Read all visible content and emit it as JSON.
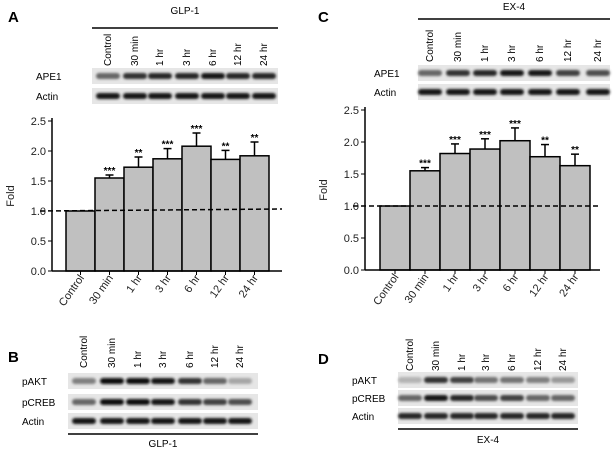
{
  "panels": {
    "A": {
      "label": "A",
      "treatment": "GLP-1",
      "blot_rows": [
        "APE1",
        "Actin"
      ]
    },
    "B": {
      "label": "B",
      "treatment": "GLP-1",
      "blot_rows": [
        "pAKT",
        "pCREB",
        "Actin"
      ]
    },
    "C": {
      "label": "C",
      "treatment": "EX-4",
      "blot_rows": [
        "APE1",
        "Actin"
      ]
    },
    "D": {
      "label": "D",
      "treatment": "EX-4",
      "blot_rows": [
        "pAKT",
        "pCREB",
        "Actin"
      ]
    }
  },
  "lanes": [
    "Control",
    "30 min",
    "1 hr",
    "3 hr",
    "6 hr",
    "12 hr",
    "24 hr"
  ],
  "band_intensity": {
    "A": [
      [
        0.6,
        0.8,
        0.85,
        0.85,
        0.9,
        0.85,
        0.85
      ],
      [
        0.9,
        0.9,
        0.9,
        0.9,
        0.9,
        0.9,
        0.9
      ]
    ],
    "B": [
      [
        0.5,
        0.95,
        0.95,
        0.9,
        0.8,
        0.6,
        0.35
      ],
      [
        0.6,
        0.95,
        0.95,
        0.9,
        0.8,
        0.75,
        0.7
      ],
      [
        0.9,
        0.9,
        0.9,
        0.9,
        0.9,
        0.9,
        0.9
      ]
    ],
    "C": [
      [
        0.6,
        0.8,
        0.85,
        0.9,
        0.9,
        0.75,
        0.7
      ],
      [
        0.9,
        0.9,
        0.9,
        0.9,
        0.9,
        0.9,
        0.9
      ]
    ],
    "D": [
      [
        0.3,
        0.8,
        0.75,
        0.55,
        0.55,
        0.5,
        0.4
      ],
      [
        0.6,
        0.9,
        0.85,
        0.7,
        0.75,
        0.6,
        0.6
      ],
      [
        0.85,
        0.85,
        0.85,
        0.85,
        0.85,
        0.85,
        0.85
      ]
    ]
  },
  "chart_data": [
    {
      "type": "bar",
      "panel": "A",
      "title": "",
      "xlabel": "",
      "ylabel": "Fold",
      "categories": [
        "Control",
        "30 min",
        "1 hr",
        "3 hr",
        "6 hr",
        "12 hr",
        "24 hr"
      ],
      "values": [
        1.0,
        1.55,
        1.73,
        1.87,
        2.08,
        1.86,
        1.92
      ],
      "errors": [
        0,
        0.05,
        0.17,
        0.17,
        0.22,
        0.15,
        0.23
      ],
      "significance": [
        "",
        "***",
        "**",
        "***",
        "***",
        "**",
        "**"
      ],
      "ylim": [
        0,
        2.5
      ],
      "yticks": [
        "0.0",
        "0.5",
        "1.0",
        "1.5",
        "2.0",
        "2.5"
      ],
      "reference_line": 1.0,
      "grid": false,
      "bar_color": "#c0c0c0"
    },
    {
      "type": "bar",
      "panel": "C",
      "title": "",
      "xlabel": "",
      "ylabel": "Fold",
      "categories": [
        "Control",
        "30 min",
        "1 hr",
        "3 hr",
        "6 hr",
        "12 hr",
        "24 hr"
      ],
      "values": [
        1.0,
        1.55,
        1.82,
        1.89,
        2.02,
        1.77,
        1.63
      ],
      "errors": [
        0,
        0.05,
        0.15,
        0.16,
        0.2,
        0.19,
        0.18
      ],
      "significance": [
        "",
        "***",
        "***",
        "***",
        "***",
        "**",
        "**"
      ],
      "ylim": [
        0,
        2.5
      ],
      "yticks": [
        "0.0",
        "0.5",
        "1.0",
        "1.5",
        "2.0",
        "2.5"
      ],
      "reference_line": 1.0,
      "grid": false,
      "bar_color": "#c0c0c0"
    }
  ]
}
